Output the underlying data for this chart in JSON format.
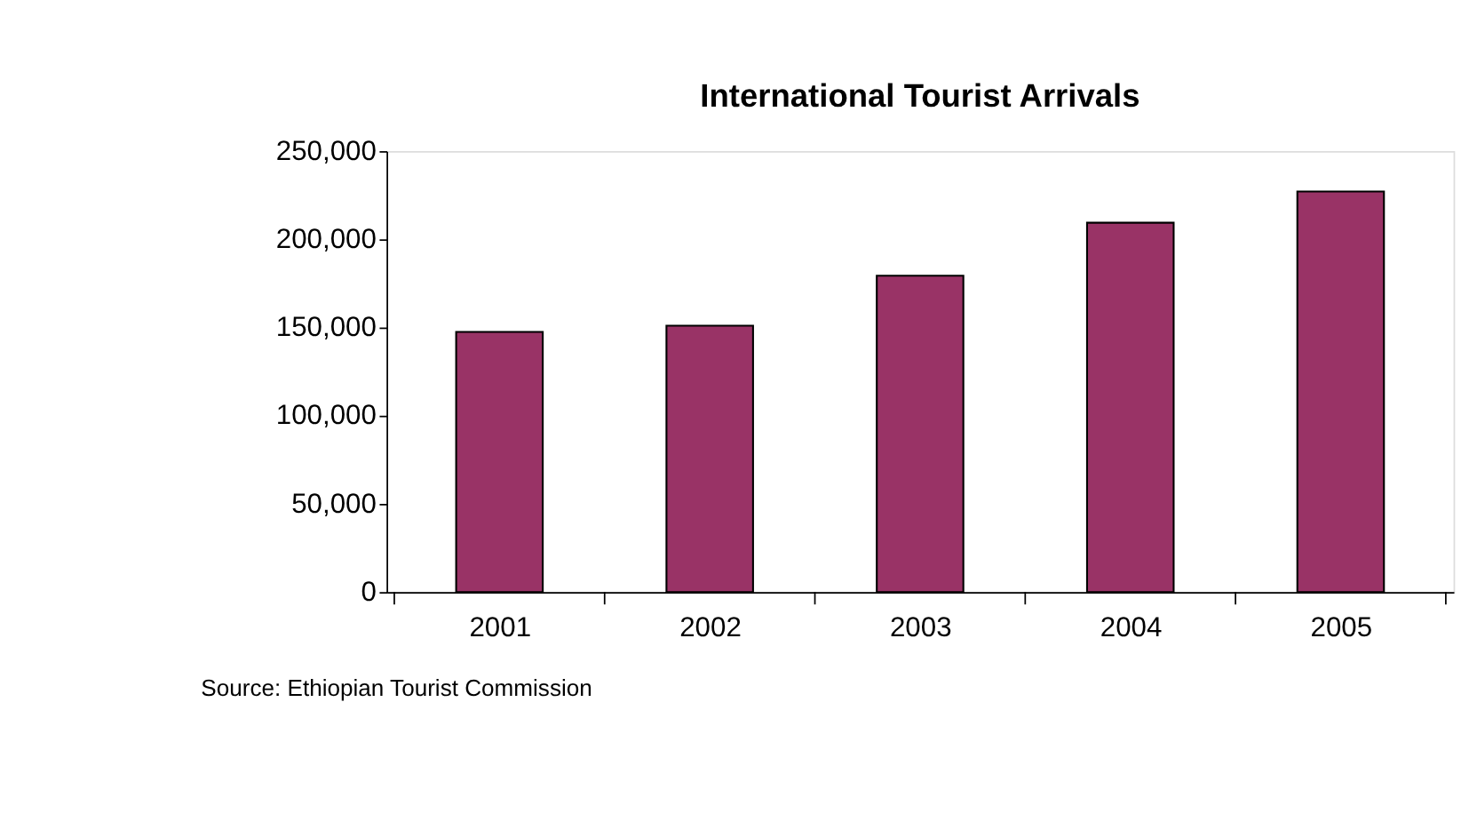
{
  "chart_data": {
    "type": "bar",
    "title": "International Tourist Arrivals",
    "categories": [
      "2001",
      "2002",
      "2003",
      "2004",
      "2005"
    ],
    "values": [
      147500,
      151000,
      179400,
      209400,
      227100
    ],
    "color": "#993366",
    "ylim": [
      0,
      250000
    ],
    "yticks": [
      {
        "value": 0,
        "label": "0"
      },
      {
        "value": 50000,
        "label": "50,000"
      },
      {
        "value": 100000,
        "label": "100,000"
      },
      {
        "value": 150000,
        "label": "150,000"
      },
      {
        "value": 200000,
        "label": "200,000"
      },
      {
        "value": 250000,
        "label": "250,000"
      }
    ],
    "grid": false,
    "annotations": [
      "Source: Ethiopian Tourist Commission"
    ]
  }
}
